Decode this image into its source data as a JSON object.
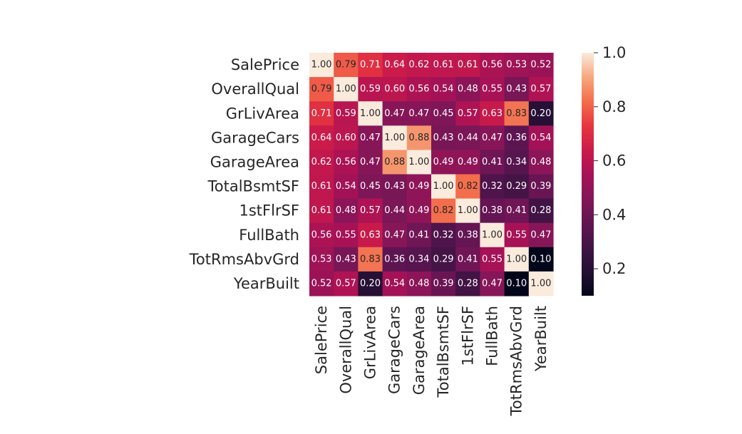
{
  "chart_data": {
    "type": "heatmap",
    "variables": [
      "SalePrice",
      "OverallQual",
      "GrLivArea",
      "GarageCars",
      "GarageArea",
      "TotalBsmtSF",
      "1stFlrSF",
      "FullBath",
      "TotRmsAbvGrd",
      "YearBuilt"
    ],
    "matrix": [
      [
        1.0,
        0.79,
        0.71,
        0.64,
        0.62,
        0.61,
        0.61,
        0.56,
        0.53,
        0.52
      ],
      [
        0.79,
        1.0,
        0.59,
        0.6,
        0.56,
        0.54,
        0.48,
        0.55,
        0.43,
        0.57
      ],
      [
        0.71,
        0.59,
        1.0,
        0.47,
        0.47,
        0.45,
        0.57,
        0.63,
        0.83,
        0.2
      ],
      [
        0.64,
        0.6,
        0.47,
        1.0,
        0.88,
        0.43,
        0.44,
        0.47,
        0.36,
        0.54
      ],
      [
        0.62,
        0.56,
        0.47,
        0.88,
        1.0,
        0.49,
        0.49,
        0.41,
        0.34,
        0.48
      ],
      [
        0.61,
        0.54,
        0.45,
        0.43,
        0.49,
        1.0,
        0.82,
        0.32,
        0.29,
        0.39
      ],
      [
        0.61,
        0.48,
        0.57,
        0.44,
        0.49,
        0.82,
        1.0,
        0.38,
        0.41,
        0.28
      ],
      [
        0.56,
        0.55,
        0.63,
        0.47,
        0.41,
        0.32,
        0.38,
        1.0,
        0.55,
        0.47
      ],
      [
        0.53,
        0.43,
        0.83,
        0.36,
        0.34,
        0.29,
        0.41,
        0.55,
        1.0,
        0.1
      ],
      [
        0.52,
        0.57,
        0.2,
        0.54,
        0.48,
        0.39,
        0.28,
        0.47,
        0.1,
        1.0
      ]
    ],
    "value_format": "0.00",
    "colormap": "rocket",
    "colorbar": {
      "range": [
        0.1,
        1.0
      ],
      "ticks": [
        0.2,
        0.4,
        0.6,
        0.8,
        1.0
      ],
      "tick_labels": [
        "0.2",
        "0.4",
        "0.6",
        "0.8",
        "1.0"
      ]
    },
    "title": "",
    "xlabel": "",
    "ylabel": "",
    "grid": false,
    "legend": "colorbar-right"
  }
}
